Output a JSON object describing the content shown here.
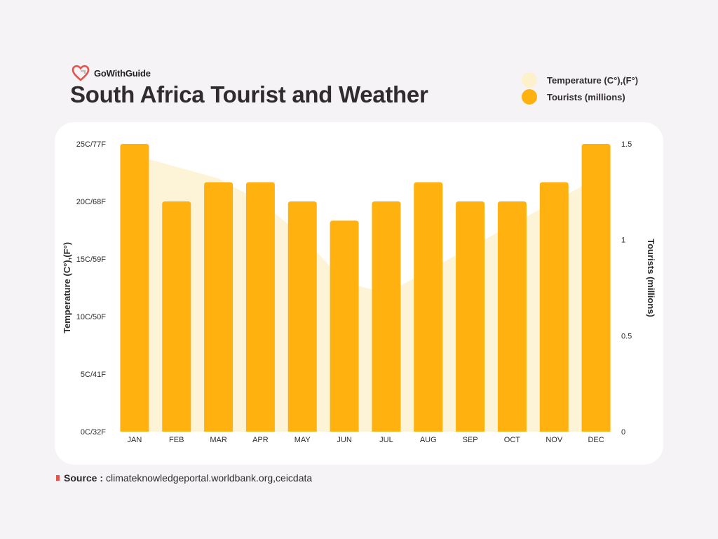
{
  "brand": {
    "name": "GoWithGuide",
    "logo_icon": "heart-pin-logo-icon",
    "logo_color": "#e4544a"
  },
  "title": "South Africa Tourist and Weather",
  "legend": {
    "temperature_label": "Temperature (C°),(F°)",
    "tourists_label": "Tourists (millions)"
  },
  "colors": {
    "bar": "#ffb20f",
    "area": "#fdf3d6",
    "legend_temp": "#fdf1cc",
    "legend_tourists": "#ffb20f"
  },
  "source": {
    "prefix": "Source :",
    "text": "climateknowledgeportal.worldbank.org,ceicdata"
  },
  "chart_data": {
    "type": "bar",
    "categories": [
      "JAN",
      "FEB",
      "MAR",
      "APR",
      "MAY",
      "JUN",
      "JUL",
      "AUG",
      "SEP",
      "OCT",
      "NOV",
      "DEC"
    ],
    "series": [
      {
        "name": "Tourists (millions)",
        "type": "bar",
        "axis": "right",
        "values": [
          1.5,
          1.2,
          1.3,
          1.3,
          1.2,
          1.1,
          1.2,
          1.3,
          1.2,
          1.2,
          1.3,
          1.5
        ]
      },
      {
        "name": "Temperature (C°),(F°)",
        "type": "area",
        "axis": "left",
        "values": [
          24,
          23,
          22,
          20,
          17,
          13,
          12,
          14,
          16,
          18,
          20,
          22
        ]
      }
    ],
    "ylabel": "Temperature (C°),(F°)",
    "ylabel_right": "Tourists (millions)",
    "ylim": [
      0,
      25
    ],
    "ylim_right": [
      0,
      1.5
    ],
    "yticks": [
      "0C/32F",
      "5C/41F",
      "10C/50F",
      "15C/59F",
      "20C/68F",
      "25C/77F"
    ],
    "yticks_right": [
      "0",
      "0.5",
      "1",
      "1.5"
    ],
    "grid": false,
    "legend_position": "top-right"
  }
}
